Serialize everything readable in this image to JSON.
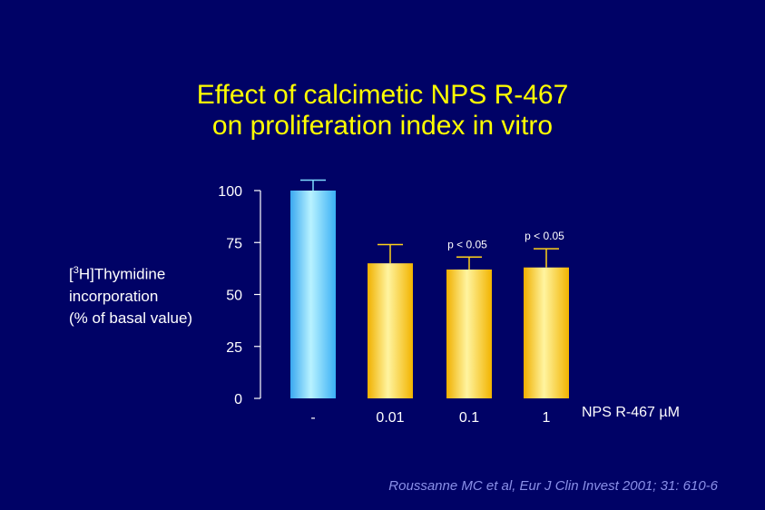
{
  "title": {
    "line1": "Effect of calcimetic NPS R-467",
    "line2": "on proliferation index in vitro"
  },
  "ylabel": {
    "bracket_open": "[",
    "superscript": "3",
    "after_sup": "H]Thymidine",
    "line2": "incorporation",
    "line3": "(% of basal value)"
  },
  "xlabel": "NPS R-467 µM",
  "citation": "Roussanne MC et al, Eur J Clin Invest 2001; 31: 610-6",
  "colors": {
    "background": "#000266",
    "title": "#ffff00",
    "control_bar": "#5fd0ff",
    "treatment_bar": "#ffd21a",
    "citation": "#8a90e8"
  },
  "chart_data": {
    "type": "bar",
    "categories": [
      "-",
      "0.01",
      "0.1",
      "1"
    ],
    "values": [
      100,
      65,
      62,
      63
    ],
    "error_upper": [
      105,
      74,
      68,
      72
    ],
    "annotations": [
      "",
      "",
      "p < 0.05",
      "p < 0.05"
    ],
    "yticks": [
      0,
      25,
      50,
      75,
      100
    ],
    "ylim": [
      0,
      100
    ],
    "grid": false,
    "legend": "none"
  }
}
